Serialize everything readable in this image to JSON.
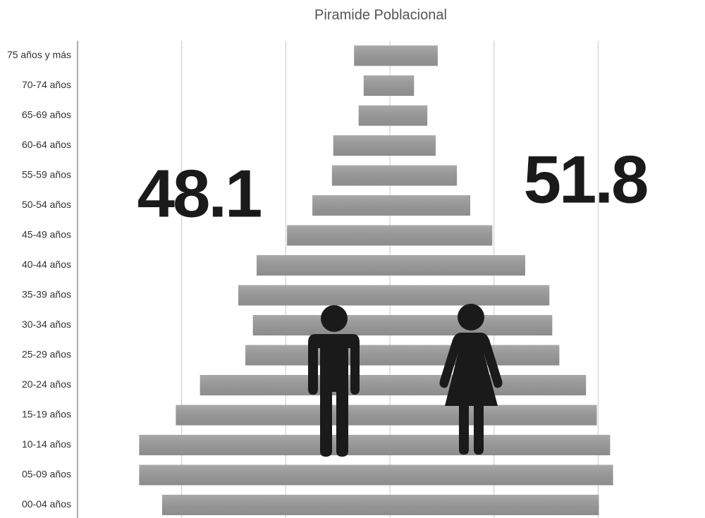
{
  "chart_data": {
    "type": "bar",
    "orientation": "horizontal",
    "title": "Piramide Poblacional",
    "categories": [
      "75 años y más",
      "70-74 años",
      "65-69 años",
      "60-64 años",
      "55-59 años",
      "50-54 años",
      "45-49 años",
      "40-44 años",
      "35-39 años",
      "30-34 años",
      "25-29 años",
      "20-24 años",
      "15-19 años",
      "10-14 años",
      "05-09 años",
      "00-04 años"
    ],
    "series": [
      {
        "color": "#9a9a9a",
        "values": [
          -0.86,
          -0.63,
          -0.75,
          -1.36,
          -1.39,
          -1.86,
          -2.47,
          -3.2,
          -3.64,
          -3.29,
          -3.47,
          -4.56,
          -5.14,
          -6.02,
          -6.02,
          -5.47
        ]
      },
      {
        "color": "#9a9a9a",
        "values": [
          1.15,
          0.58,
          0.9,
          1.1,
          1.61,
          1.93,
          2.46,
          3.25,
          3.83,
          3.9,
          4.07,
          4.71,
          4.97,
          5.29,
          5.36,
          5.02
        ]
      }
    ],
    "annotations": [
      "48.1",
      "51.8"
    ],
    "xlim": [
      -7.5,
      7.5
    ],
    "xticks": [
      -5,
      -2.5,
      0,
      2.5,
      5
    ],
    "grid": true
  }
}
